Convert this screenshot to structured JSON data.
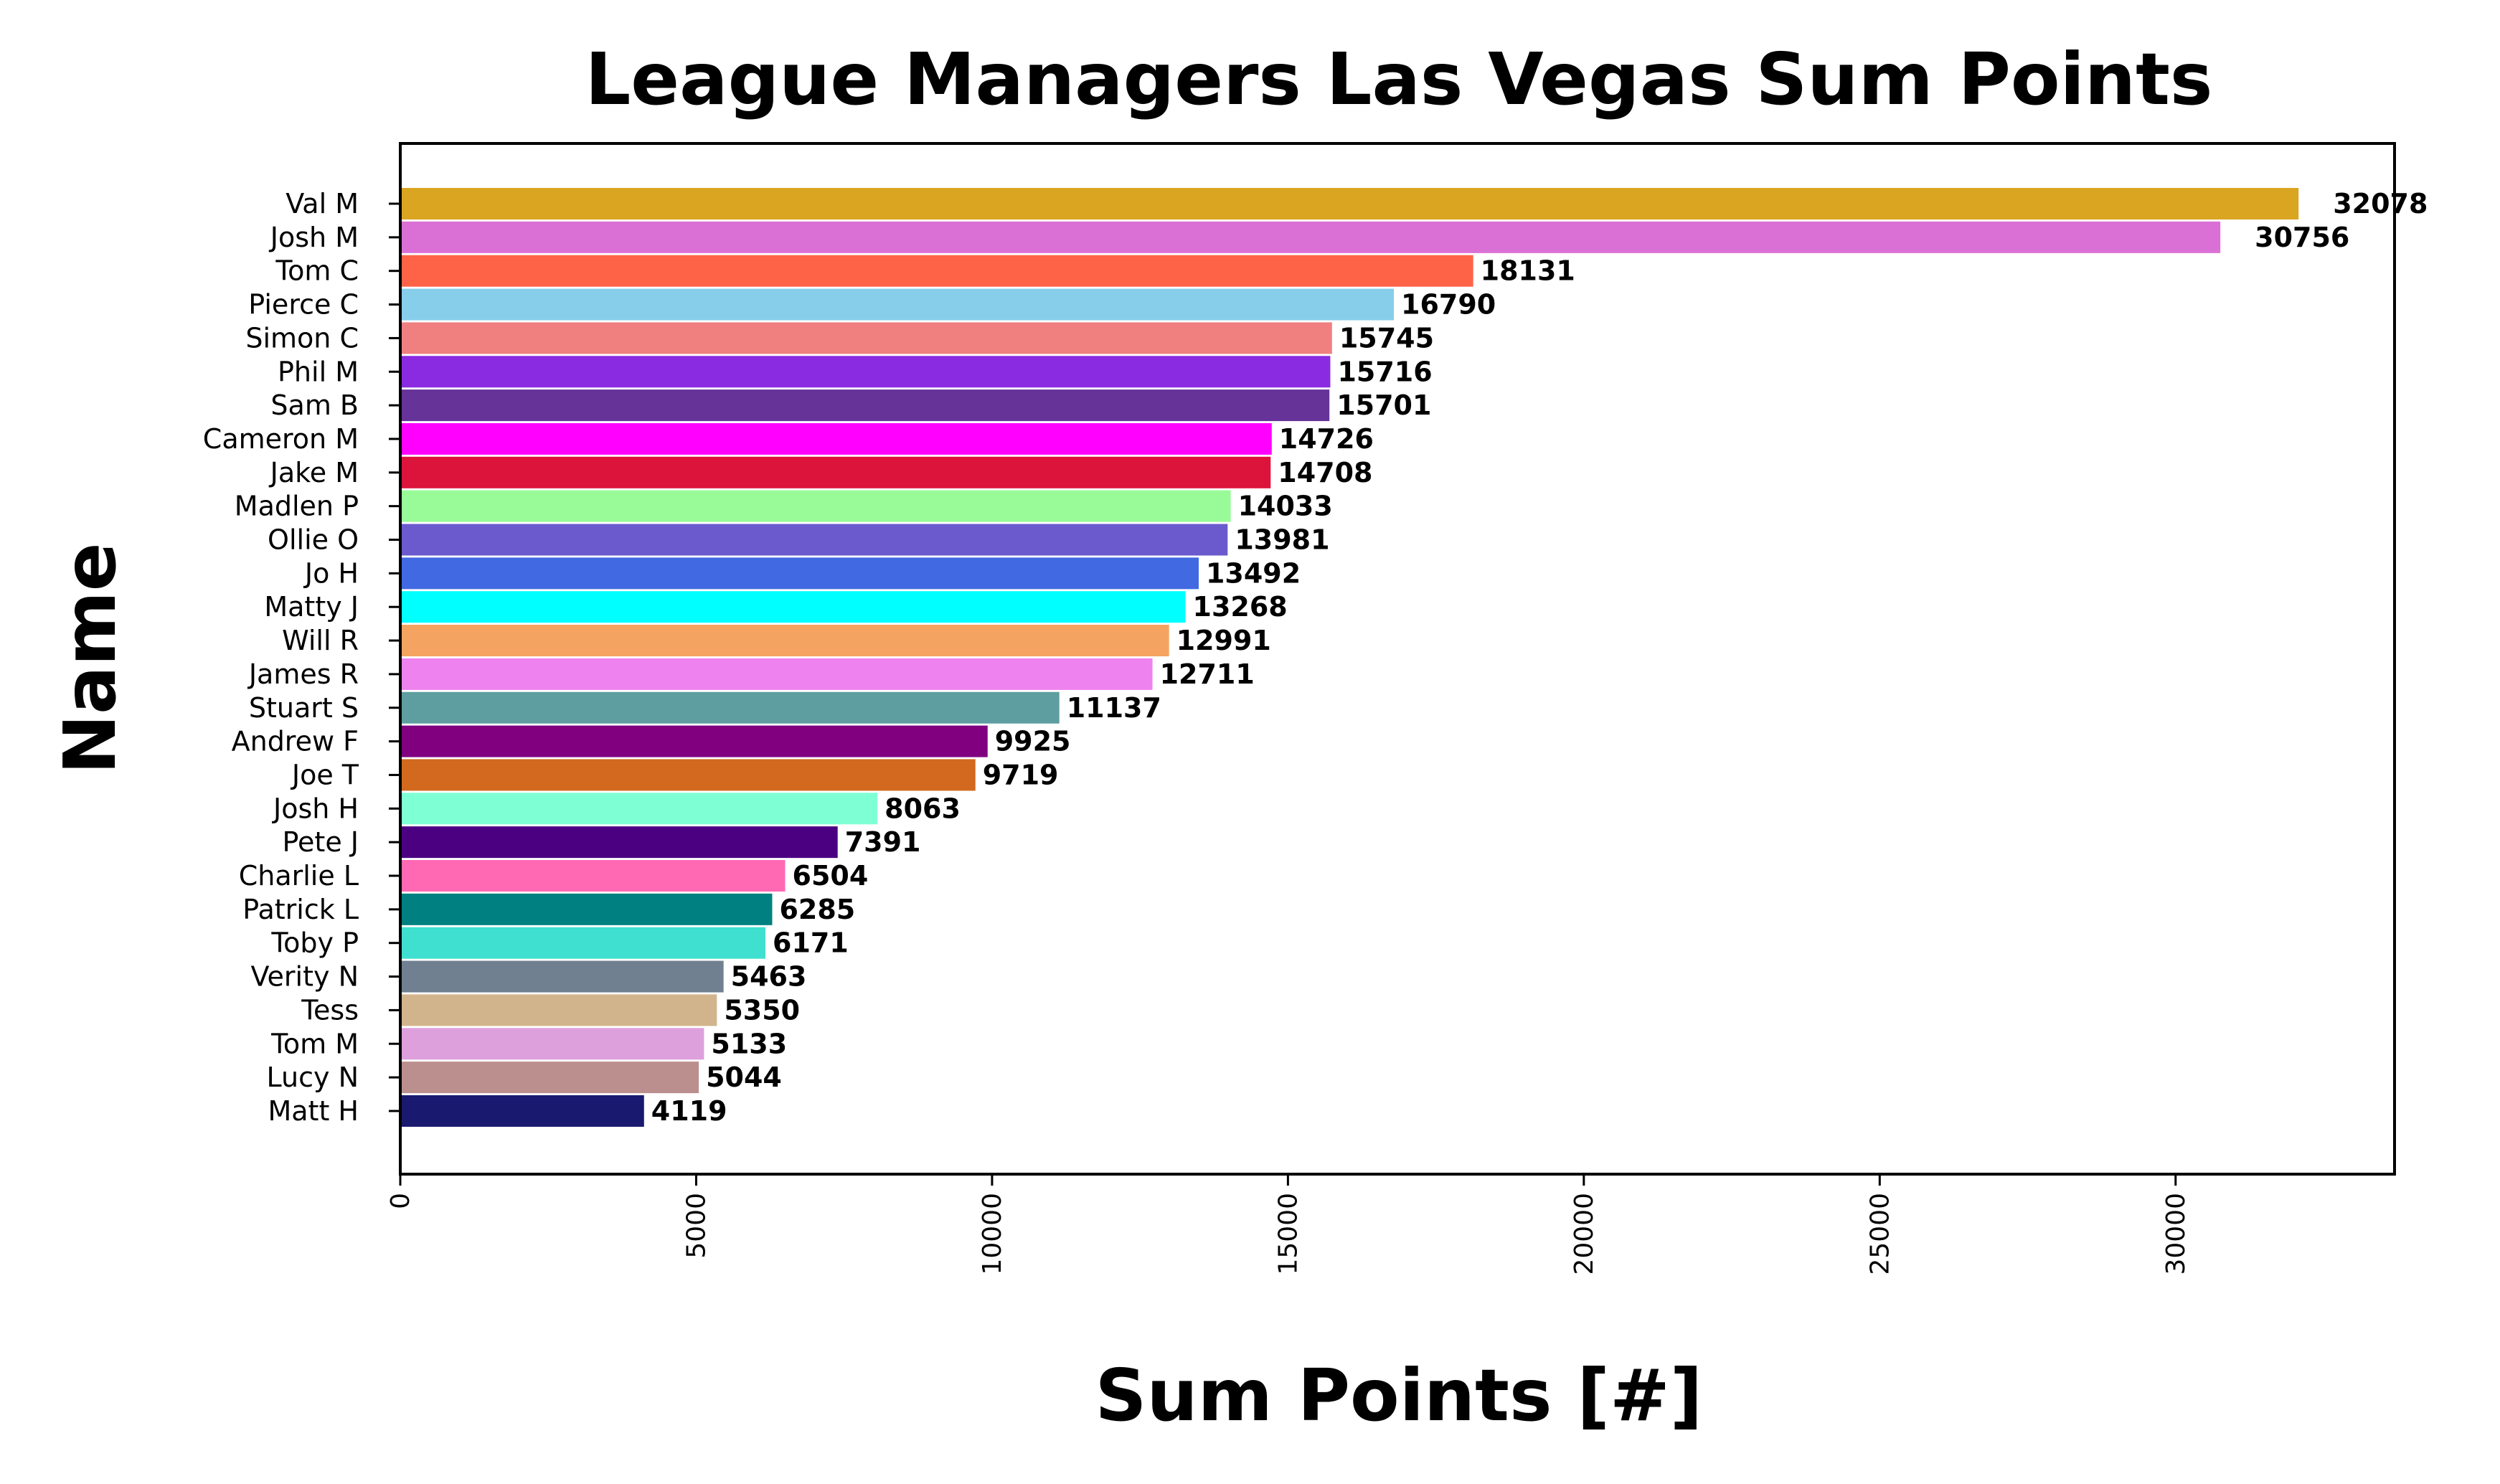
{
  "chart_data": {
    "type": "bar",
    "orientation": "horizontal",
    "title": "League Managers Las Vegas Sum Points",
    "xlabel": "Sum Points [#]",
    "ylabel": "Name",
    "xlim": [
      0,
      33700
    ],
    "xticks": [
      "0",
      "5000",
      "10000",
      "15000",
      "20000",
      "25000",
      "30000"
    ],
    "grid": false,
    "legend": "none",
    "categories": [
      "Val M",
      "Josh M",
      "Tom C",
      "Pierce C",
      "Simon C",
      "Phil M",
      "Sam B",
      "Cameron M",
      "Jake M",
      "Madlen P",
      "Ollie O",
      "Jo H",
      "Matty J",
      "Will R",
      "James R",
      "Stuart S",
      "Andrew F",
      "Joe T",
      "Josh H",
      "Pete J",
      "Charlie L",
      "Patrick L",
      "Toby P",
      "Verity N",
      "Tess",
      "Tom M",
      "Lucy N",
      "Matt H"
    ],
    "values": [
      32078,
      30756,
      18131,
      16790,
      15745,
      15716,
      15701,
      14726,
      14708,
      14033,
      13981,
      13492,
      13268,
      12991,
      12711,
      11137,
      9925,
      9719,
      8063,
      7391,
      6504,
      6285,
      6171,
      5463,
      5350,
      5133,
      5044,
      4119
    ],
    "value_labels": [
      "32078",
      "30756",
      "18131",
      "16790",
      "15745",
      "15716",
      "15701",
      "14726",
      "14708",
      "14033",
      "13981",
      "13492",
      "13268",
      "12991",
      "12711",
      "11137",
      "9925",
      "9719",
      "8063",
      "7391",
      "6504",
      "6285",
      "6171",
      "5463",
      "5350",
      "5133",
      "5044",
      "4119"
    ],
    "colors": [
      "#DAA520",
      "#DA70D6",
      "#FF6347",
      "#87CEEB",
      "#F08080",
      "#8A2BE2",
      "#663399",
      "#FF00FF",
      "#DC143C",
      "#98FB98",
      "#6A5ACD",
      "#4169E1",
      "#00FFFF",
      "#F4A460",
      "#EE82EE",
      "#5F9EA0",
      "#800080",
      "#D2691E",
      "#7FFFD4",
      "#4B0082",
      "#FF69B4",
      "#008080",
      "#40E0D0",
      "#708090",
      "#D2B48C",
      "#DDA0DD",
      "#BC8F8F",
      "#191970"
    ]
  }
}
